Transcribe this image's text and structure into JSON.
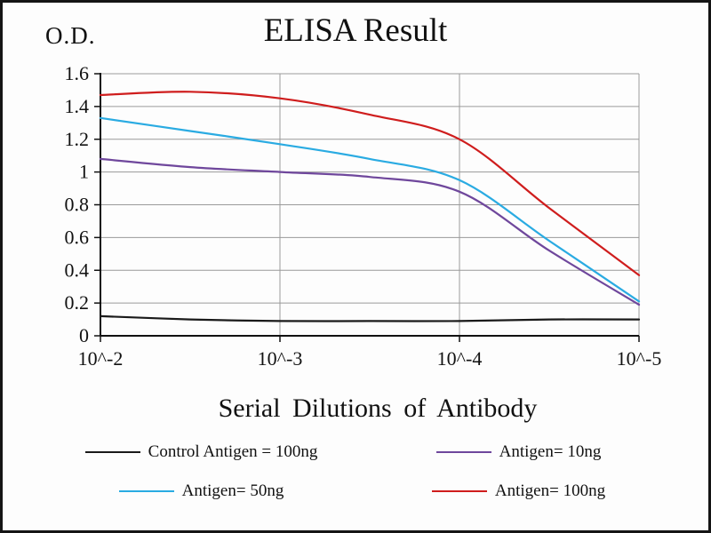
{
  "chart_data": {
    "type": "line",
    "title": "ELISA Result",
    "ylabel": "O.D.",
    "xlabel": "Serial Dilutions  of Antibody",
    "x_scale": "log-dilution",
    "x_exponents": [
      -2,
      -2.5,
      -3,
      -3.5,
      -4,
      -4.5,
      -5
    ],
    "x_tick_exponents": [
      -2,
      -3,
      -4,
      -5
    ],
    "x_tick_labels": [
      "10^-2",
      "10^-3",
      "10^-4",
      "10^-5"
    ],
    "y_ticks": [
      0,
      0.2,
      0.4,
      0.6,
      0.8,
      1,
      1.2,
      1.4,
      1.6
    ],
    "ylim": [
      0,
      1.6
    ],
    "grid": true,
    "legend_position": "bottom",
    "axis_color": "#111111",
    "grid_color": "#9a9a9a",
    "series": [
      {
        "name": "Control Antigen = 100ng",
        "color": "#1a1a1a",
        "values": [
          0.12,
          0.1,
          0.09,
          0.09,
          0.09,
          0.1,
          0.1
        ]
      },
      {
        "name": "Antigen= 10ng",
        "color": "#6f479c",
        "values": [
          1.08,
          1.03,
          1.0,
          0.97,
          0.88,
          0.52,
          0.19
        ]
      },
      {
        "name": "Antigen= 50ng",
        "color": "#2aabe2",
        "values": [
          1.33,
          1.25,
          1.17,
          1.08,
          0.95,
          0.58,
          0.21
        ]
      },
      {
        "name": "Antigen= 100ng",
        "color": "#cf1d1d",
        "values": [
          1.47,
          1.49,
          1.45,
          1.35,
          1.2,
          0.78,
          0.37
        ]
      }
    ]
  }
}
